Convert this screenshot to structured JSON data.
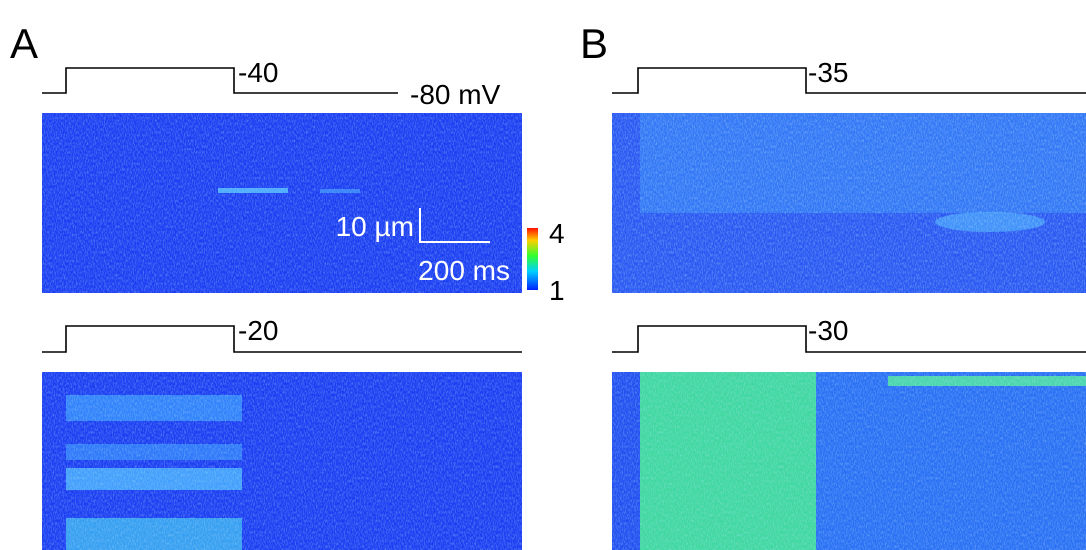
{
  "panels": [
    {
      "label": "A",
      "traces": [
        {
          "voltage": "-40",
          "holding": "-80 mV"
        },
        {
          "voltage": "-20"
        }
      ]
    },
    {
      "label": "B",
      "traces": [
        {
          "voltage": "-35"
        },
        {
          "voltage": "-30"
        }
      ]
    }
  ],
  "scale_bar": {
    "y": "10 µm",
    "x": "200 ms"
  },
  "colorbar": {
    "max": "4",
    "min": "1"
  }
}
